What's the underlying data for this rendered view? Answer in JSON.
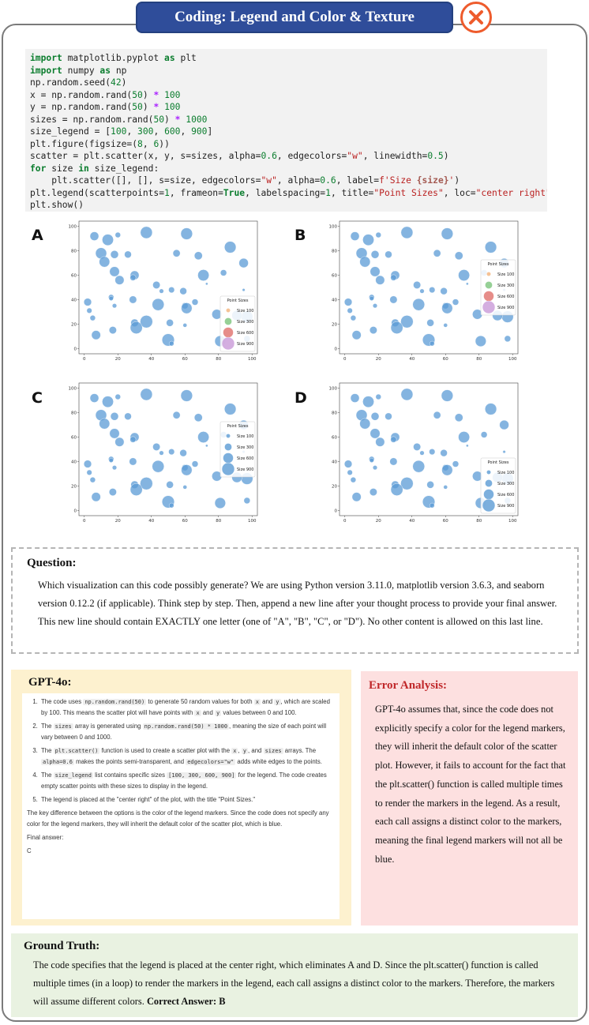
{
  "header": {
    "title": "Coding: Legend and Color & Texture",
    "status_icon": "x-icon",
    "status_color": "#ee5b2c"
  },
  "code": {
    "lines": [
      "import matplotlib.pyplot as plt",
      "import numpy as np",
      "np.random.seed(42)",
      "x = np.random.rand(50) * 100",
      "y = np.random.rand(50) * 100",
      "sizes = np.random.rand(50) * 1000",
      "size_legend = [100, 300, 600, 900]",
      "plt.figure(figsize=(8, 6))",
      "scatter = plt.scatter(x, y, s=sizes, alpha=0.6, edgecolors=\"w\", linewidth=0.5)",
      "for size in size_legend:",
      "    plt.scatter([], [], s=size, edgecolors=\"w\", alpha=0.6, label=f'Size {size}')",
      "plt.legend(scatterpoints=1, frameon=True, labelspacing=1, title=\"Point Sizes\", loc=\"center right\")",
      "plt.show()"
    ]
  },
  "options": [
    {
      "letter": "A",
      "legend_position": "lower-right",
      "legend_colors": [
        "#f2b37a",
        "#7cc47c",
        "#e0706c",
        "#c99ad8"
      ]
    },
    {
      "letter": "B",
      "legend_position": "center-right",
      "legend_colors": [
        "#f2b37a",
        "#7cc47c",
        "#e0706c",
        "#c99ad8"
      ]
    },
    {
      "letter": "C",
      "legend_position": "center-right",
      "legend_colors": [
        "#5b9bd5",
        "#5b9bd5",
        "#5b9bd5",
        "#5b9bd5"
      ]
    },
    {
      "letter": "D",
      "legend_position": "lower-right",
      "legend_colors": [
        "#5b9bd5",
        "#5b9bd5",
        "#5b9bd5",
        "#5b9bd5"
      ]
    }
  ],
  "chart_data": {
    "type": "scatter",
    "xlim": [
      0,
      100
    ],
    "ylim": [
      0,
      100
    ],
    "x_ticks": [
      "0",
      "20",
      "40",
      "60",
      "80",
      "100"
    ],
    "y_ticks": [
      "0",
      "20",
      "40",
      "60",
      "80",
      "100"
    ],
    "point_color": "#5b9bd5",
    "points": [
      {
        "x": 37,
        "y": 95,
        "size": 730
      },
      {
        "x": 95,
        "y": 48,
        "size": 40
      },
      {
        "x": 73,
        "y": 53,
        "size": 30
      },
      {
        "x": 60,
        "y": 19,
        "size": 80
      },
      {
        "x": 16,
        "y": 42,
        "size": 150
      },
      {
        "x": 16,
        "y": 41,
        "size": 100
      },
      {
        "x": 6,
        "y": 92,
        "size": 390
      },
      {
        "x": 87,
        "y": 83,
        "size": 690
      },
      {
        "x": 60,
        "y": 35,
        "size": 200
      },
      {
        "x": 71,
        "y": 60,
        "size": 650
      },
      {
        "x": 2,
        "y": 38,
        "size": 300
      },
      {
        "x": 97,
        "y": 26,
        "size": 700
      },
      {
        "x": 83,
        "y": 62,
        "size": 200
      },
      {
        "x": 21,
        "y": 56,
        "size": 420
      },
      {
        "x": 18,
        "y": 77,
        "size": 320
      },
      {
        "x": 18,
        "y": 63,
        "size": 500
      },
      {
        "x": 30,
        "y": 60,
        "size": 400
      },
      {
        "x": 52,
        "y": 48,
        "size": 180
      },
      {
        "x": 43,
        "y": 52,
        "size": 280
      },
      {
        "x": 29,
        "y": 58,
        "size": 180
      },
      {
        "x": 61,
        "y": 94,
        "size": 700
      },
      {
        "x": 14,
        "y": 89,
        "size": 650
      },
      {
        "x": 29,
        "y": 40,
        "size": 280
      },
      {
        "x": 37,
        "y": 22,
        "size": 800
      },
      {
        "x": 46,
        "y": 47,
        "size": 100
      },
      {
        "x": 79,
        "y": 28,
        "size": 500
      },
      {
        "x": 20,
        "y": 93,
        "size": 150
      },
      {
        "x": 51,
        "y": 21,
        "size": 260
      },
      {
        "x": 59,
        "y": 47,
        "size": 250
      },
      {
        "x": 5,
        "y": 25,
        "size": 150
      },
      {
        "x": 61,
        "y": 33,
        "size": 600
      },
      {
        "x": 17,
        "y": 15,
        "size": 280
      },
      {
        "x": 7,
        "y": 11,
        "size": 420
      },
      {
        "x": 95,
        "y": 70,
        "size": 450
      },
      {
        "x": 97,
        "y": 8,
        "size": 200
      },
      {
        "x": 81,
        "y": 6,
        "size": 600
      },
      {
        "x": 30,
        "y": 21,
        "size": 300
      },
      {
        "x": 10,
        "y": 78,
        "size": 630
      },
      {
        "x": 68,
        "y": 76,
        "size": 330
      },
      {
        "x": 44,
        "y": 36,
        "size": 730
      },
      {
        "x": 12,
        "y": 71,
        "size": 570
      },
      {
        "x": 50,
        "y": 7,
        "size": 780
      },
      {
        "x": 3,
        "y": 31,
        "size": 140
      },
      {
        "x": 91,
        "y": 27,
        "size": 540
      },
      {
        "x": 26,
        "y": 77,
        "size": 250
      },
      {
        "x": 66,
        "y": 38,
        "size": 200
      },
      {
        "x": 31,
        "y": 17,
        "size": 750
      },
      {
        "x": 52,
        "y": 4,
        "size": 120
      },
      {
        "x": 55,
        "y": 78,
        "size": 270
      },
      {
        "x": 18,
        "y": 35,
        "size": 100
      }
    ],
    "legend": {
      "title": "Point Sizes",
      "entries": [
        {
          "label": "Size 100",
          "size": 100
        },
        {
          "label": "Size 300",
          "size": 300
        },
        {
          "label": "Size 600",
          "size": 600
        },
        {
          "label": "Size 900",
          "size": 900
        }
      ]
    }
  },
  "question": {
    "title": "Question:",
    "text": "Which visualization can this code possibly generate? We are using Python version 3.11.0, matplotlib version 3.6.3, and seaborn version 0.12.2 (if applicable). Think step by step. Then, append a new line after your thought process to provide your final answer. This new line should contain EXACTLY one letter (one of \"A\", \"B\", \"C\", or \"D\"). No other content is allowed on this last line."
  },
  "gpt": {
    "title": "GPT-4o:",
    "items": [
      {
        "p1": "The code uses ",
        "c1": "np.random.rand(50)",
        "p2": " to generate 50 random values for both ",
        "c2": "x",
        "p3": " and ",
        "c3": "y",
        "p4": ", which are scaled by 100. This means the scatter plot will have points with ",
        "c4": "x",
        "p5": " and ",
        "c5": "y",
        "p6": " values between 0 and 100."
      },
      {
        "p1": "The ",
        "c1": "sizes",
        "p2": " array is generated using ",
        "c2": "np.random.rand(50) * 1000",
        "p3": ", meaning the size of each point will vary between 0 and 1000."
      },
      {
        "p1": "The ",
        "c1": "plt.scatter()",
        "p2": " function is used to create a scatter plot with the ",
        "c2": "x",
        "p3": ", ",
        "c3": "y",
        "p4": ", and ",
        "c4": "sizes",
        "p5": " arrays. The ",
        "c5": "alpha=0.6",
        "p6": " makes the points semi-transparent, and ",
        "c6": "edgecolors=\"w\"",
        "p7": " adds white edges to the points."
      },
      {
        "p1": "The ",
        "c1": "size_legend",
        "p2": " list contains specific sizes ",
        "c2": "[100, 300, 600, 900]",
        "p3": " for the legend. The code creates empty scatter points with these sizes to display in the legend."
      },
      {
        "p1": "The legend is placed at the \"center right\" of the plot, with the title \"Point Sizes.\""
      }
    ],
    "summary": "The key difference between the options is the color of the legend markers. Since the code does not specify any color for the legend markers, they will inherit the default color of the scatter plot, which is blue.",
    "final_label": "Final answer:",
    "final_value": "C"
  },
  "error_analysis": {
    "title": "Error Analysis:",
    "text": "GPT-4o assumes that, since the code does not explicitly specify a color for the legend markers, they will inherit the default color of the scatter plot. However, it fails to account for the fact that the plt.scatter() function is called multiple times to render the markers in the legend. As a result, each call assigns a distinct color to the markers, meaning the final legend markers will not all be blue."
  },
  "ground_truth": {
    "title": "Ground Truth:",
    "text": "The code specifies that the legend is placed at the center right, which eliminates A and D. Since the plt.scatter() function is called multiple times (in a loop) to render the markers in the legend, each call assigns a distinct color to the markers. Therefore, the markers will assume different colors.",
    "answer": "Correct Answer: B"
  }
}
